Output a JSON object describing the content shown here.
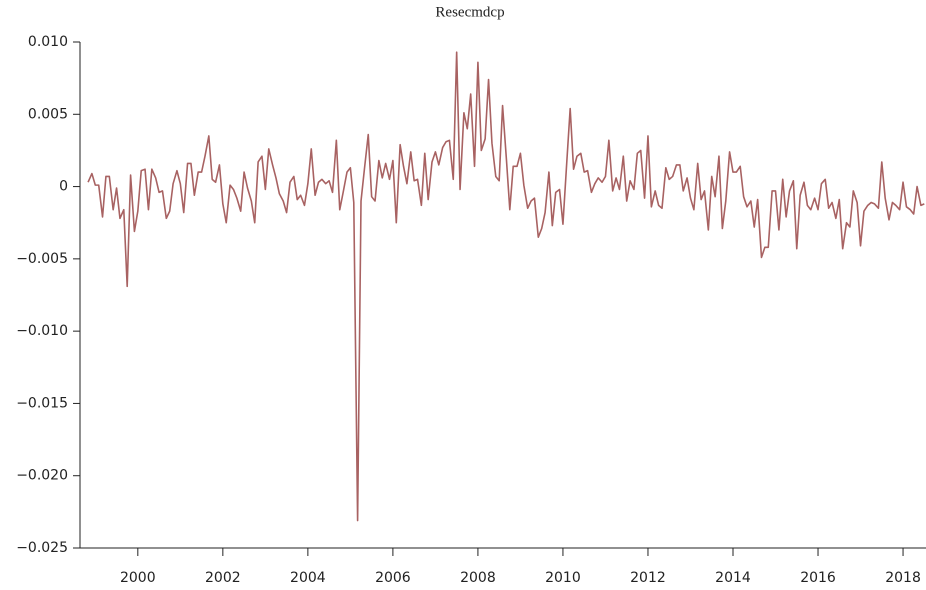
{
  "chart_data": {
    "type": "line",
    "title": "Resecmdcp",
    "x": [
      1998.83,
      1998.92,
      1999.0,
      1999.08,
      1999.17,
      1999.25,
      1999.33,
      1999.42,
      1999.5,
      1999.58,
      1999.67,
      1999.75,
      1999.83,
      1999.92,
      2000.0,
      2000.08,
      2000.17,
      2000.25,
      2000.33,
      2000.42,
      2000.5,
      2000.58,
      2000.67,
      2000.75,
      2000.83,
      2000.92,
      2001.0,
      2001.08,
      2001.17,
      2001.25,
      2001.33,
      2001.42,
      2001.5,
      2001.58,
      2001.67,
      2001.75,
      2001.83,
      2001.92,
      2002.0,
      2002.08,
      2002.17,
      2002.25,
      2002.33,
      2002.42,
      2002.5,
      2002.58,
      2002.67,
      2002.75,
      2002.83,
      2002.92,
      2003.0,
      2003.08,
      2003.17,
      2003.25,
      2003.33,
      2003.42,
      2003.5,
      2003.58,
      2003.67,
      2003.75,
      2003.83,
      2003.92,
      2004.0,
      2004.08,
      2004.17,
      2004.25,
      2004.33,
      2004.42,
      2004.5,
      2004.58,
      2004.67,
      2004.75,
      2004.83,
      2004.92,
      2005.0,
      2005.08,
      2005.17,
      2005.25,
      2005.33,
      2005.42,
      2005.5,
      2005.58,
      2005.67,
      2005.75,
      2005.83,
      2005.92,
      2006.0,
      2006.08,
      2006.17,
      2006.25,
      2006.33,
      2006.42,
      2006.5,
      2006.58,
      2006.67,
      2006.75,
      2006.83,
      2006.92,
      2007.0,
      2007.08,
      2007.17,
      2007.25,
      2007.33,
      2007.42,
      2007.5,
      2007.58,
      2007.67,
      2007.75,
      2007.83,
      2007.92,
      2008.0,
      2008.08,
      2008.17,
      2008.25,
      2008.33,
      2008.42,
      2008.5,
      2008.58,
      2008.67,
      2008.75,
      2008.83,
      2008.92,
      2009.0,
      2009.08,
      2009.17,
      2009.25,
      2009.33,
      2009.42,
      2009.5,
      2009.58,
      2009.67,
      2009.75,
      2009.83,
      2009.92,
      2010.0,
      2010.08,
      2010.17,
      2010.25,
      2010.33,
      2010.42,
      2010.5,
      2010.58,
      2010.67,
      2010.75,
      2010.83,
      2010.92,
      2011.0,
      2011.08,
      2011.17,
      2011.25,
      2011.33,
      2011.42,
      2011.5,
      2011.58,
      2011.67,
      2011.75,
      2011.83,
      2011.92,
      2012.0,
      2012.08,
      2012.17,
      2012.25,
      2012.33,
      2012.42,
      2012.5,
      2012.58,
      2012.67,
      2012.75,
      2012.83,
      2012.92,
      2013.0,
      2013.08,
      2013.17,
      2013.25,
      2013.33,
      2013.42,
      2013.5,
      2013.58,
      2013.67,
      2013.75,
      2013.83,
      2013.92,
      2014.0,
      2014.08,
      2014.17,
      2014.25,
      2014.33,
      2014.42,
      2014.5,
      2014.58,
      2014.67,
      2014.75,
      2014.83,
      2014.92,
      2015.0,
      2015.08,
      2015.17,
      2015.25,
      2015.33,
      2015.42,
      2015.5,
      2015.58,
      2015.67,
      2015.75,
      2015.83,
      2015.92,
      2016.0,
      2016.08,
      2016.17,
      2016.25,
      2016.33,
      2016.42,
      2016.5,
      2016.58,
      2016.67,
      2016.75,
      2016.83,
      2016.92,
      2017.0,
      2017.08,
      2017.17,
      2017.25,
      2017.33,
      2017.42,
      2017.5,
      2017.58,
      2017.67,
      2017.75,
      2017.83,
      2017.92,
      2018.0,
      2018.08,
      2018.17,
      2018.25,
      2018.33,
      2018.42,
      2018.5
    ],
    "series": [
      {
        "name": "Resecmdcp",
        "color": "#a86262",
        "values": [
          0.0003,
          0.0009,
          0.0001,
          0.0001,
          -0.0021,
          0.0007,
          0.0007,
          -0.0016,
          -0.0001,
          -0.0022,
          -0.0016,
          -0.0069,
          0.0008,
          -0.0031,
          -0.0017,
          0.0011,
          0.0012,
          -0.0016,
          0.0012,
          0.0006,
          -0.0004,
          -0.0003,
          -0.0022,
          -0.0017,
          0.0002,
          0.0011,
          0.0002,
          -0.0018,
          0.0016,
          0.0016,
          -0.0006,
          0.001,
          0.001,
          0.0021,
          0.0035,
          0.0005,
          0.0003,
          0.0015,
          -0.0012,
          -0.0025,
          0.0001,
          -0.0002,
          -0.0008,
          -0.0017,
          0.001,
          -0.0001,
          -0.001,
          -0.0025,
          0.0017,
          0.0021,
          -0.0002,
          0.0026,
          0.0015,
          0.0006,
          -0.0005,
          -0.001,
          -0.0018,
          0.0003,
          0.0007,
          -0.0009,
          -0.0006,
          -0.0013,
          0.0002,
          0.0026,
          -0.0006,
          0.0003,
          0.0005,
          0.0002,
          0.0004,
          -0.0004,
          0.0032,
          -0.0016,
          -0.0004,
          0.001,
          0.0013,
          -0.0011,
          -0.0231,
          -0.001,
          0.0012,
          0.0036,
          -0.0007,
          -0.001,
          0.0018,
          0.0006,
          0.0016,
          0.0005,
          0.0018,
          -0.0025,
          0.0029,
          0.0014,
          0.0002,
          0.0024,
          0.0004,
          0.0005,
          -0.0013,
          0.0023,
          -0.0009,
          0.0017,
          0.0024,
          0.0015,
          0.0027,
          0.0031,
          0.0032,
          0.0005,
          0.0093,
          -0.0002,
          0.0051,
          0.004,
          0.0064,
          0.0014,
          0.0086,
          0.0025,
          0.0033,
          0.0074,
          0.003,
          0.0007,
          0.0004,
          0.0056,
          0.0019,
          -0.0016,
          0.0014,
          0.0014,
          0.0023,
          0.0001,
          -0.0015,
          -0.001,
          -0.0008,
          -0.0035,
          -0.0029,
          -0.0018,
          0.001,
          -0.0027,
          -0.0004,
          -0.0002,
          -0.0026,
          0.0012,
          0.0054,
          0.0012,
          0.0021,
          0.0023,
          0.001,
          0.0011,
          -0.0004,
          0.0002,
          0.0006,
          0.0003,
          0.0007,
          0.0032,
          -0.0003,
          0.0006,
          -0.0002,
          0.0021,
          -0.001,
          0.0004,
          -0.0002,
          0.0023,
          0.0025,
          -0.0008,
          0.0035,
          -0.0014,
          -0.0003,
          -0.0013,
          -0.0015,
          0.0013,
          0.0005,
          0.0007,
          0.0015,
          0.0015,
          -0.0003,
          0.0006,
          -0.0008,
          -0.0016,
          0.0016,
          -0.0009,
          -0.0003,
          -0.003,
          0.0007,
          -0.0007,
          0.0021,
          -0.0029,
          -0.001,
          0.0024,
          0.001,
          0.001,
          0.0014,
          -0.0007,
          -0.0014,
          -0.001,
          -0.0028,
          -0.0009,
          -0.0049,
          -0.0042,
          -0.0042,
          -0.0003,
          -0.0003,
          -0.003,
          0.0005,
          -0.0021,
          -0.0003,
          0.0004,
          -0.0043,
          -0.0006,
          0.0003,
          -0.0013,
          -0.0016,
          -0.0008,
          -0.0016,
          0.0002,
          0.0005,
          -0.0015,
          -0.0011,
          -0.0022,
          -0.0009,
          -0.0043,
          -0.0025,
          -0.0028,
          -0.0003,
          -0.0011,
          -0.0041,
          -0.0017,
          -0.0013,
          -0.0011,
          -0.0012,
          -0.0015,
          0.0017,
          -0.0008,
          -0.0023,
          -0.0011,
          -0.0013,
          -0.0016,
          0.0003,
          -0.0014,
          -0.0016,
          -0.0019,
          0.0,
          -0.0013,
          -0.0012
        ]
      }
    ],
    "xlim": [
      1998.64,
      2018.54
    ],
    "xticks": [
      2000,
      2002,
      2004,
      2006,
      2008,
      2010,
      2012,
      2014,
      2016,
      2018
    ],
    "ylim": [
      -0.025,
      0.01
    ],
    "yticks": [
      {
        "value": -0.025,
        "label": "−0.025"
      },
      {
        "value": -0.02,
        "label": "−0.020"
      },
      {
        "value": -0.015,
        "label": "−0.015"
      },
      {
        "value": -0.01,
        "label": "−0.010"
      },
      {
        "value": -0.005,
        "label": "−0.005"
      },
      0,
      0.005,
      {
        "value": 0.01,
        "label": "0.010"
      }
    ],
    "grid": false
  }
}
